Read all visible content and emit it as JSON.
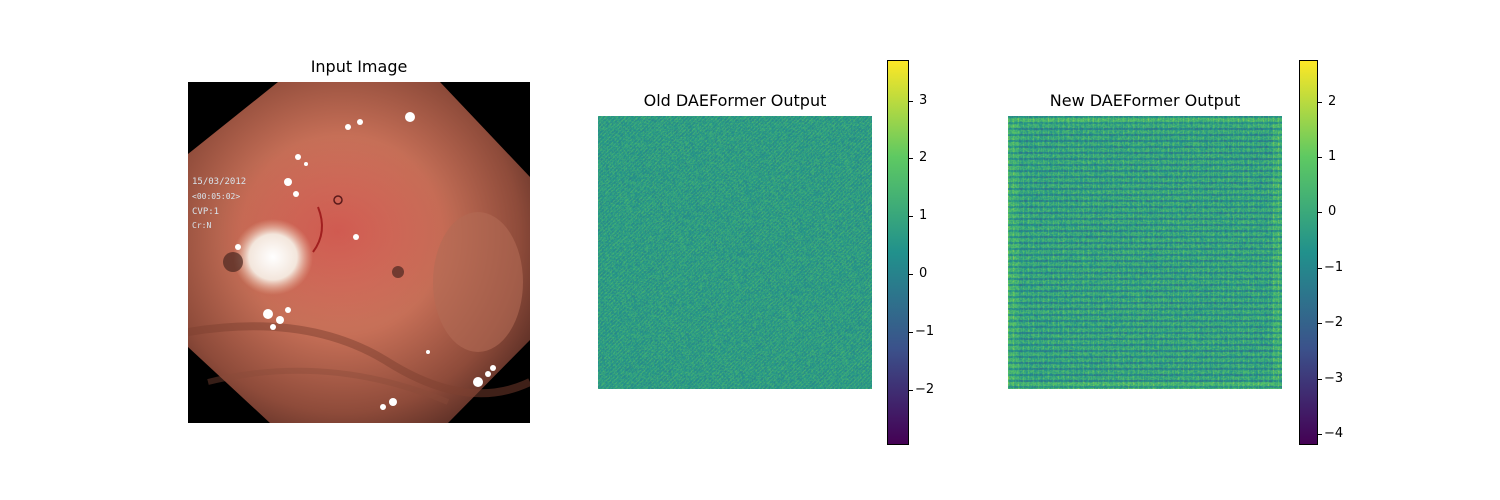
{
  "panels": {
    "input": {
      "title": "Input Image"
    },
    "old": {
      "title": "Old DAEFormer Output"
    },
    "new": {
      "title": "New DAEFormer Output"
    }
  },
  "input_overlay": {
    "date": "15/03/2012",
    "time": "<00:05:02>",
    "line3": "CVP:1",
    "line4": "Cr:N"
  },
  "colorbars": {
    "old": {
      "ticks": [
        "3",
        "2",
        "1",
        "0",
        "−1",
        "−2"
      ],
      "tick_values": [
        3,
        2,
        1,
        0,
        -1,
        -2
      ],
      "range": [
        -2.95,
        3.7
      ]
    },
    "new": {
      "ticks": [
        "2",
        "1",
        "0",
        "−1",
        "−2",
        "−3",
        "−4"
      ],
      "tick_values": [
        2,
        1,
        0,
        -1,
        -2,
        -3,
        -4
      ],
      "range": [
        -4.2,
        2.75
      ]
    }
  },
  "colors": {
    "viridis": [
      "#440154",
      "#3b528b",
      "#21918c",
      "#5ec962",
      "#fde725"
    ]
  }
}
